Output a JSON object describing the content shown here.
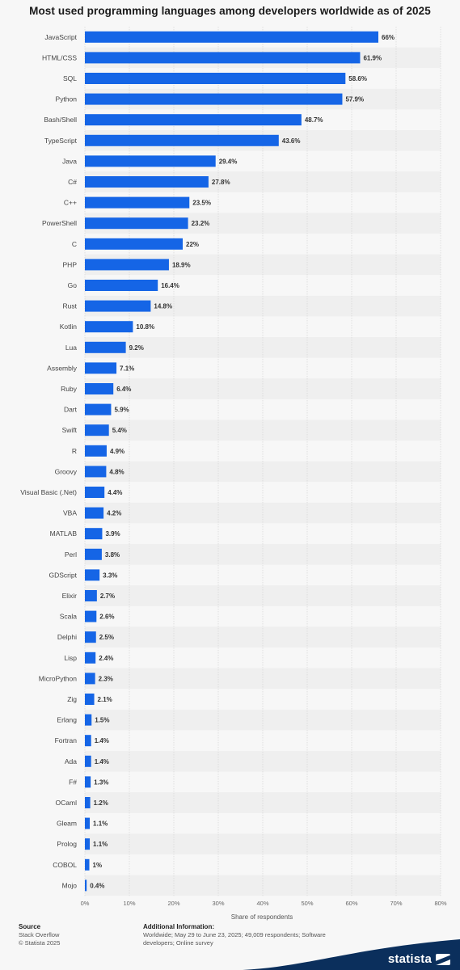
{
  "chart_data": {
    "type": "bar",
    "orientation": "horizontal",
    "title": "Most used programming languages among developers worldwide as of 2025",
    "xlabel": "Share of respondents",
    "ylabel": "",
    "xlim": [
      0,
      80
    ],
    "ticks": [
      0,
      10,
      20,
      30,
      40,
      50,
      60,
      70,
      80
    ],
    "tick_labels": [
      "0%",
      "10%",
      "20%",
      "30%",
      "40%",
      "50%",
      "60%",
      "70%",
      "80%"
    ],
    "grid": true,
    "bar_color": "#1565e6",
    "categories": [
      "JavaScript",
      "HTML/CSS",
      "SQL",
      "Python",
      "Bash/Shell",
      "TypeScript",
      "Java",
      "C#",
      "C++",
      "PowerShell",
      "C",
      "PHP",
      "Go",
      "Rust",
      "Kotlin",
      "Lua",
      "Assembly",
      "Ruby",
      "Dart",
      "Swift",
      "R",
      "Groovy",
      "Visual Basic (.Net)",
      "VBA",
      "MATLAB",
      "Perl",
      "GDScript",
      "Elixir",
      "Scala",
      "Delphi",
      "Lisp",
      "MicroPython",
      "Zig",
      "Erlang",
      "Fortran",
      "Ada",
      "F#",
      "OCaml",
      "Gleam",
      "Prolog",
      "COBOL",
      "Mojo"
    ],
    "values": [
      66,
      61.9,
      58.6,
      57.9,
      48.7,
      43.6,
      29.4,
      27.8,
      23.5,
      23.2,
      22,
      18.9,
      16.4,
      14.8,
      10.8,
      9.2,
      7.1,
      6.4,
      5.9,
      5.4,
      4.9,
      4.8,
      4.4,
      4.2,
      3.9,
      3.8,
      3.3,
      2.7,
      2.6,
      2.5,
      2.4,
      2.3,
      2.1,
      1.5,
      1.4,
      1.4,
      1.3,
      1.2,
      1.1,
      1.1,
      1,
      0.4
    ],
    "value_labels": [
      "66%",
      "61.9%",
      "58.6%",
      "57.9%",
      "48.7%",
      "43.6%",
      "29.4%",
      "27.8%",
      "23.5%",
      "23.2%",
      "22%",
      "18.9%",
      "16.4%",
      "14.8%",
      "10.8%",
      "9.2%",
      "7.1%",
      "6.4%",
      "5.9%",
      "5.4%",
      "4.9%",
      "4.8%",
      "4.4%",
      "4.2%",
      "3.9%",
      "3.8%",
      "3.3%",
      "2.7%",
      "2.6%",
      "2.5%",
      "2.4%",
      "2.3%",
      "2.1%",
      "1.5%",
      "1.4%",
      "1.4%",
      "1.3%",
      "1.2%",
      "1.1%",
      "1.1%",
      "1%",
      "0.4%"
    ]
  },
  "footer": {
    "source_heading": "Source",
    "source_line1": "Stack Overflow",
    "source_line2": "© Statista 2025",
    "info_heading": "Additional Information:",
    "info_text": "Worldwide; May 29 to June 23, 2025; 49,009 respondents; Software developers; Online survey"
  },
  "brand": {
    "name": "statista",
    "band_color": "#0b2f5c"
  }
}
